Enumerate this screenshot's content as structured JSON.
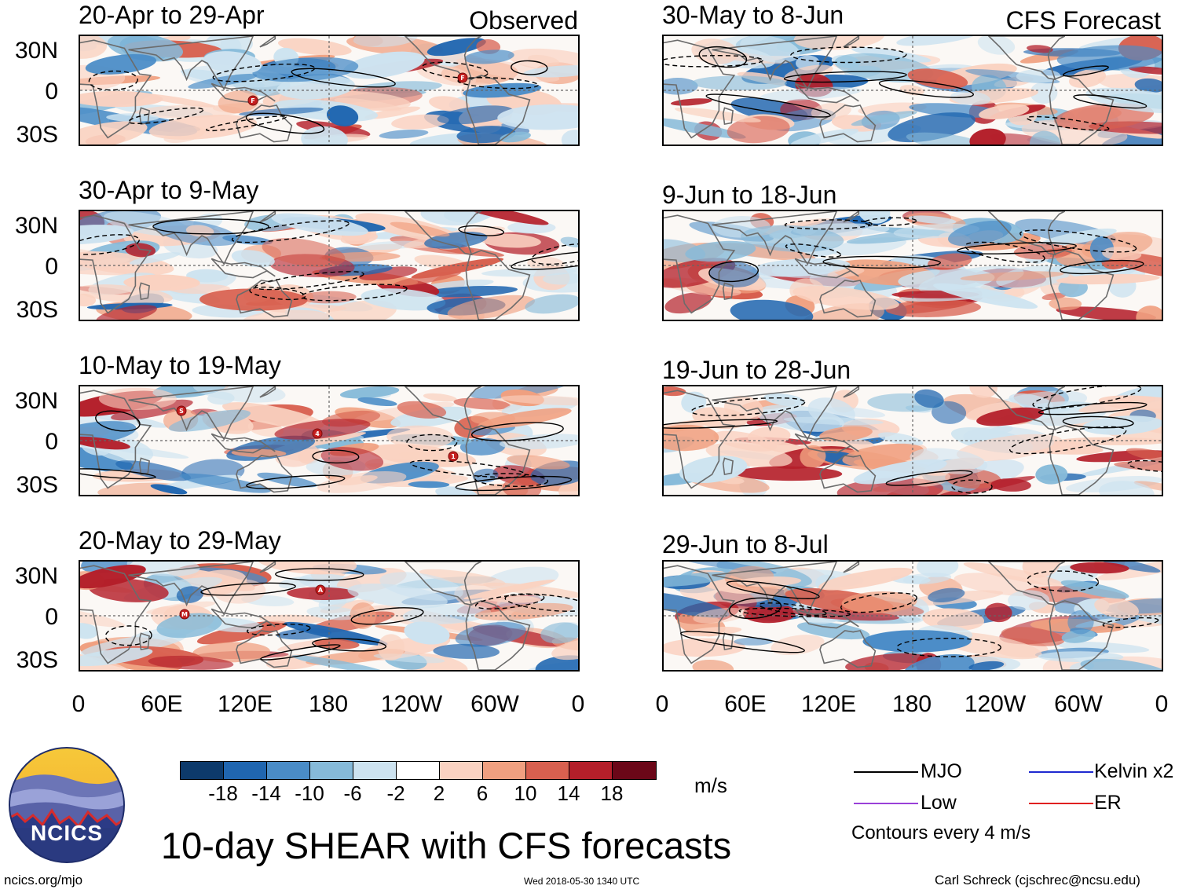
{
  "header": {
    "observed_label": "Observed",
    "forecast_label": "CFS Forecast"
  },
  "panels": {
    "observed": [
      {
        "title": "20-Apr to 29-Apr",
        "storms": [
          "F",
          "F"
        ]
      },
      {
        "title": "30-Apr to 9-May",
        "storms": []
      },
      {
        "title": "10-May to 19-May",
        "storms": [
          "S",
          "4",
          "1"
        ]
      },
      {
        "title": "20-May to 29-May",
        "storms": [
          "M",
          "A"
        ]
      }
    ],
    "forecast": [
      {
        "title": "30-May to 8-Jun"
      },
      {
        "title": "9-Jun to 18-Jun"
      },
      {
        "title": "19-Jun to 28-Jun"
      },
      {
        "title": "29-Jun to 8-Jul"
      }
    ]
  },
  "axes": {
    "lat_labels": [
      "30N",
      "0",
      "30S"
    ],
    "lon_labels": [
      "0",
      "60E",
      "120E",
      "180",
      "120W",
      "60W",
      "0"
    ]
  },
  "colorbar": {
    "unit": "m/s",
    "ticks": [
      "-18",
      "-14",
      "-10",
      "-6",
      "-2",
      "2",
      "6",
      "10",
      "14",
      "18"
    ],
    "colors": [
      "#0d3a6b",
      "#2066b0",
      "#4a8cc7",
      "#86bad9",
      "#cde3f0",
      "#ffffff",
      "#fad2c1",
      "#f0a080",
      "#d8604f",
      "#b41f2a",
      "#6b0718"
    ]
  },
  "legend": {
    "items": [
      {
        "label": "MJO",
        "color": "#000000"
      },
      {
        "label": "Kelvin x2",
        "color": "#1f2ad0"
      },
      {
        "label": "Low",
        "color": "#9a40d8"
      },
      {
        "label": "ER",
        "color": "#e02020"
      }
    ],
    "contour_note": "Contours every 4 m/s"
  },
  "footer": {
    "title": "10-day SHEAR with CFS forecasts",
    "logo_text": "NCICS",
    "url": "ncics.org/mjo",
    "timestamp": "Wed 2018-05-30 1340 UTC",
    "credit": "Carl Schreck (cjschrec@ncsu.edu)"
  }
}
